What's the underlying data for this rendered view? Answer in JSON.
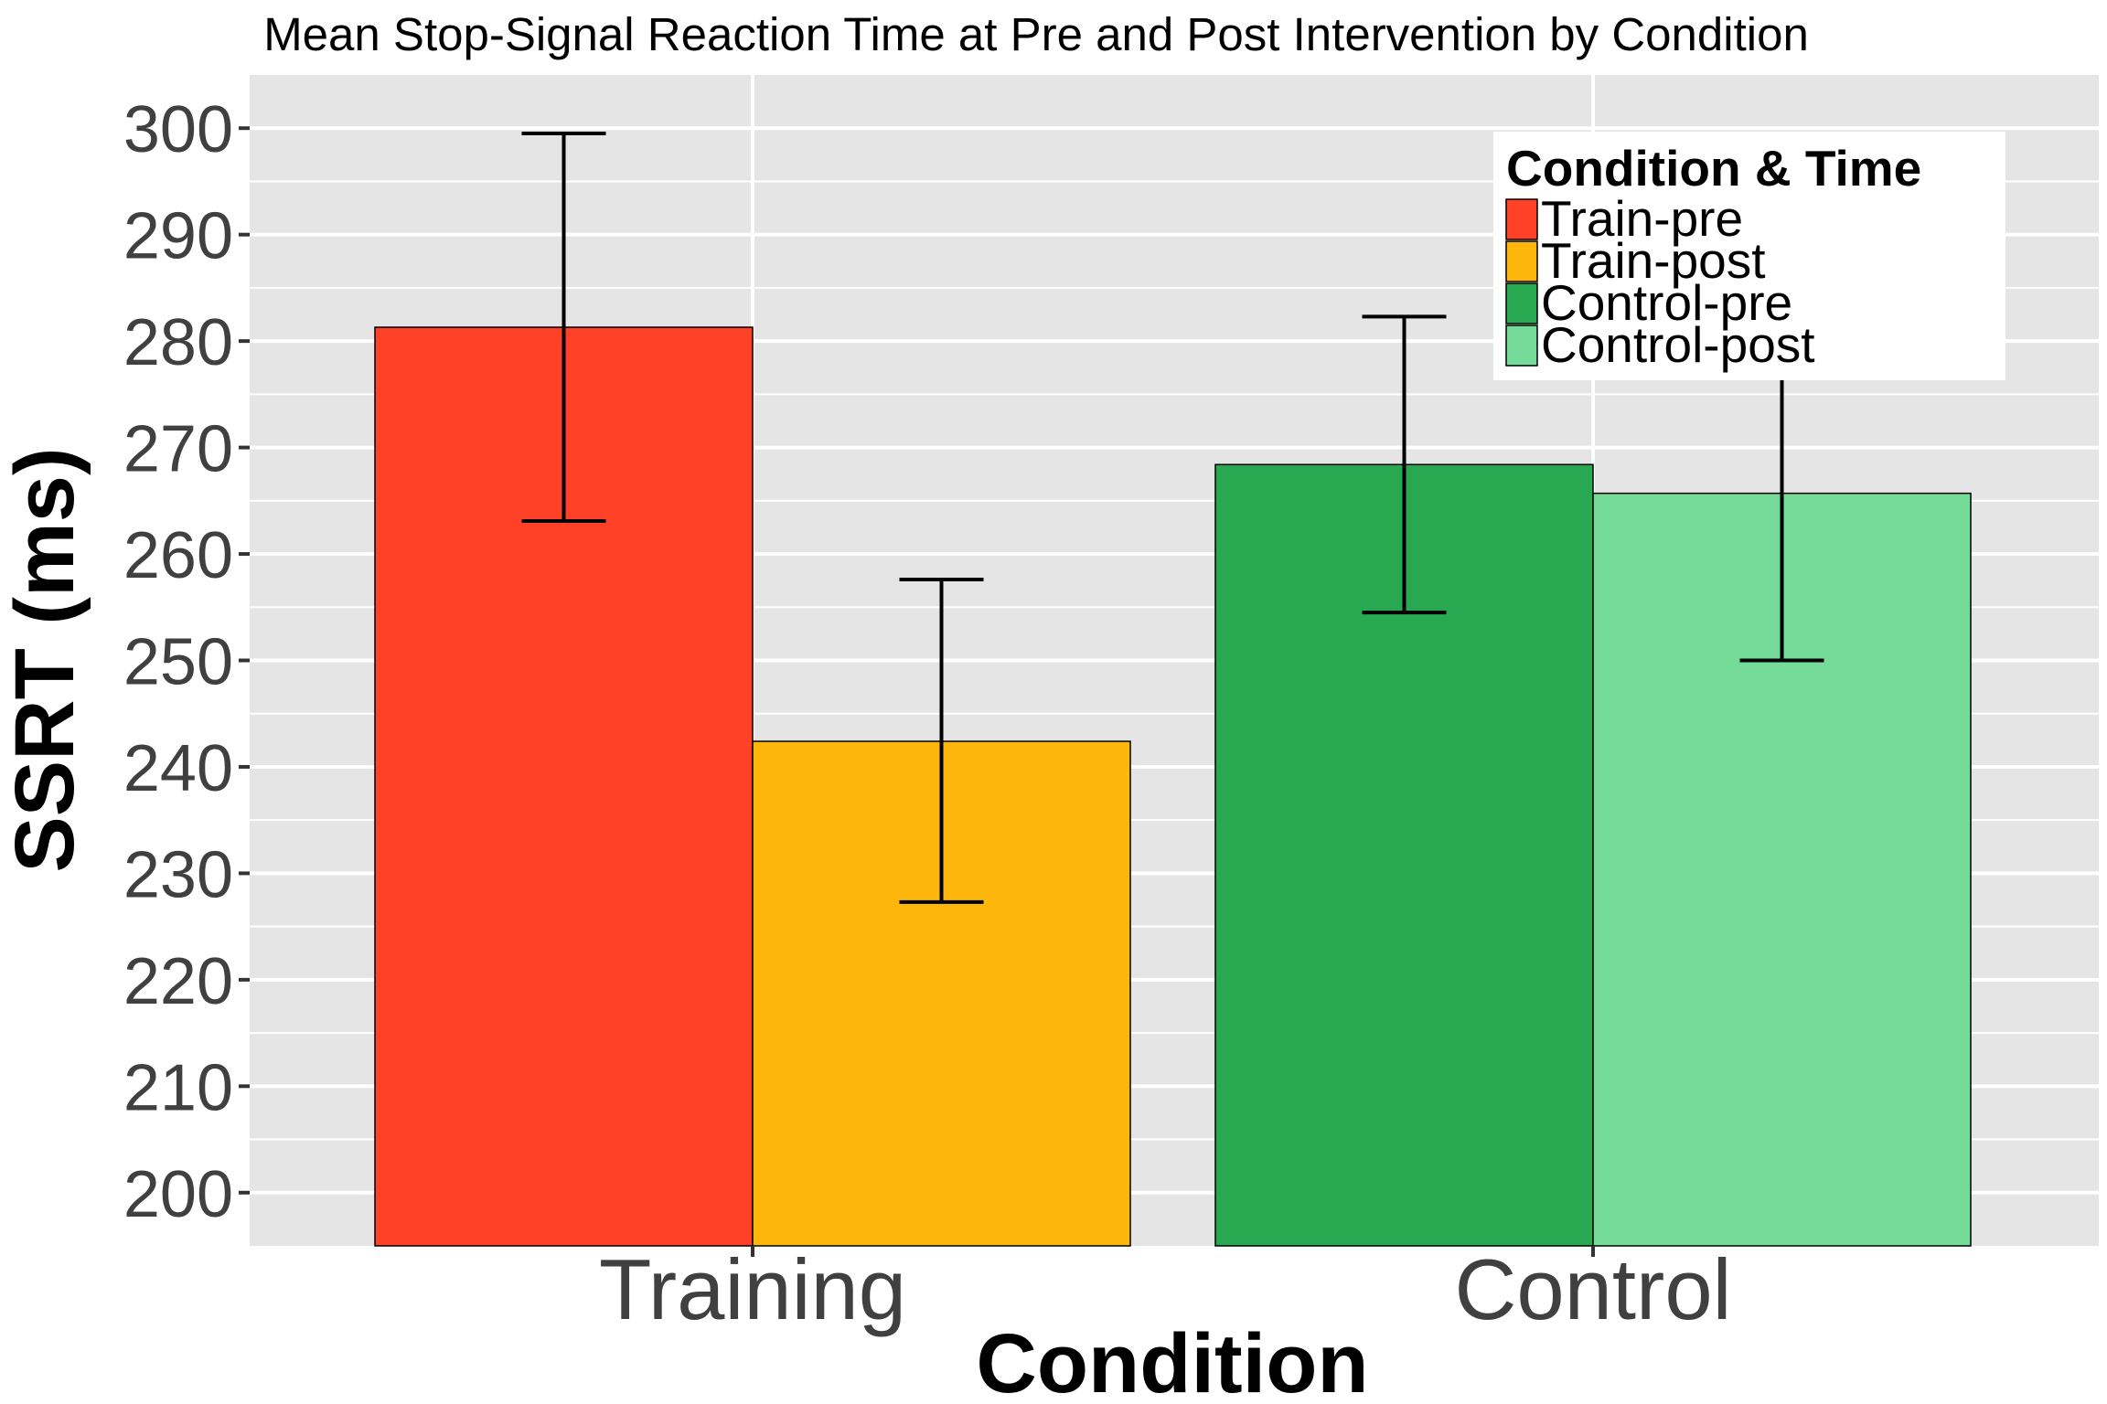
{
  "chart_data": {
    "type": "bar",
    "title": "Mean Stop-Signal Reaction Time at Pre and Post Intervention by Condition",
    "xlabel": "Condition",
    "ylabel": "SSRT (ms)",
    "categories": [
      "Training",
      "Control"
    ],
    "ylim": [
      195,
      305
    ],
    "yticks": [
      200,
      210,
      220,
      230,
      240,
      250,
      260,
      270,
      280,
      290,
      300
    ],
    "grid": true,
    "legend": {
      "title": "Condition & Time",
      "placement": "top-right"
    },
    "bars": [
      {
        "category": "Training",
        "series": "Train-pre",
        "value": 281.3,
        "error_low": 263.1,
        "error_high": 299.5,
        "color": "#FF4128"
      },
      {
        "category": "Training",
        "series": "Train-post",
        "value": 242.4,
        "error_low": 227.3,
        "error_high": 257.6,
        "color": "#FDB60C"
      },
      {
        "category": "Control",
        "series": "Control-pre",
        "value": 268.4,
        "error_low": 254.5,
        "error_high": 282.3,
        "color": "#29A852"
      },
      {
        "category": "Control",
        "series": "Control-post",
        "value": 265.7,
        "error_low": 250.0,
        "error_high": 281.4,
        "color": "#74DB98"
      }
    ],
    "series": [
      {
        "name": "Train-pre",
        "color": "#FF4128"
      },
      {
        "name": "Train-post",
        "color": "#FDB60C"
      },
      {
        "name": "Control-pre",
        "color": "#29A852"
      },
      {
        "name": "Control-post",
        "color": "#74DB98"
      }
    ]
  },
  "colors": {
    "panel_background": "#E5E5E5",
    "grid": "#FFFFFF",
    "bar_outline": "#000000",
    "error_bar": "#000000"
  }
}
